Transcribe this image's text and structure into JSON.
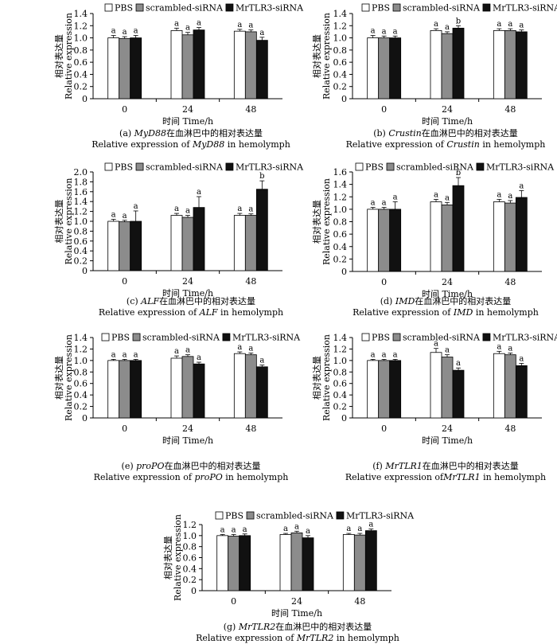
{
  "chart_data": [
    {
      "type": "bar",
      "panel": "a",
      "categories": [
        "0",
        "24",
        "48"
      ],
      "series": [
        {
          "name": "PBS",
          "color": "#ffffff",
          "values": [
            1.0,
            1.12,
            1.11
          ],
          "errors": [
            0.04,
            0.04,
            0.03
          ],
          "letters": [
            "a",
            "a",
            "a"
          ]
        },
        {
          "name": "scrambled-siRNA",
          "color": "#8c8c8c",
          "values": [
            0.99,
            1.05,
            1.1
          ],
          "errors": [
            0.03,
            0.04,
            0.03
          ],
          "letters": [
            "a",
            "a",
            "a"
          ]
        },
        {
          "name": "MrTLR3-siRNA",
          "color": "#111111",
          "values": [
            1.0,
            1.13,
            0.96
          ],
          "errors": [
            0.04,
            0.04,
            0.05
          ],
          "letters": [
            "a",
            "a",
            "a"
          ]
        }
      ],
      "ylim": [
        0,
        1.4
      ],
      "yticks": [
        0,
        0.2,
        0.4,
        0.6,
        0.8,
        1.0,
        1.2,
        1.4
      ],
      "ylabel_cn": "相对表达量",
      "ylabel_en": "Relative expression",
      "xlabel": "时间 Time/h",
      "caption_cn_prefix": "(a) ",
      "caption_gene": "MyD88",
      "caption_cn_suffix": "在血淋巴中的相对表达量",
      "caption_en_prefix": "Relative expression of ",
      "caption_en_suffix": " in hemolymph"
    },
    {
      "type": "bar",
      "panel": "b",
      "categories": [
        "0",
        "24",
        "48"
      ],
      "series": [
        {
          "name": "PBS",
          "color": "#ffffff",
          "values": [
            1.0,
            1.12,
            1.12
          ],
          "errors": [
            0.04,
            0.03,
            0.03
          ],
          "letters": [
            "a",
            "a",
            "a"
          ]
        },
        {
          "name": "scrambled-siRNA",
          "color": "#8c8c8c",
          "values": [
            1.0,
            1.07,
            1.12
          ],
          "errors": [
            0.03,
            0.03,
            0.03
          ],
          "letters": [
            "a",
            "a",
            "a"
          ]
        },
        {
          "name": "MrTLR3-siRNA",
          "color": "#111111",
          "values": [
            1.0,
            1.16,
            1.1
          ],
          "errors": [
            0.03,
            0.04,
            0.03
          ],
          "letters": [
            "a",
            "b",
            "a"
          ]
        }
      ],
      "ylim": [
        0,
        1.4
      ],
      "yticks": [
        0,
        0.2,
        0.4,
        0.6,
        0.8,
        1.0,
        1.2,
        1.4
      ],
      "ylabel_cn": "相对表达量",
      "ylabel_en": "Relative expression",
      "xlabel": "时间 Time/h",
      "caption_cn_prefix": "(b) ",
      "caption_gene": "Crustin",
      "caption_cn_suffix": "在血淋巴中的相对表达量",
      "caption_en_prefix": "Relative expression of ",
      "caption_en_suffix": " in hemolymph"
    },
    {
      "type": "bar",
      "panel": "c",
      "categories": [
        "0",
        "24",
        "48"
      ],
      "series": [
        {
          "name": "PBS",
          "color": "#ffffff",
          "values": [
            1.0,
            1.12,
            1.12
          ],
          "errors": [
            0.04,
            0.04,
            0.04
          ],
          "letters": [
            "a",
            "a",
            "a"
          ]
        },
        {
          "name": "scrambled-siRNA",
          "color": "#8c8c8c",
          "values": [
            0.99,
            1.08,
            1.12
          ],
          "errors": [
            0.03,
            0.04,
            0.03
          ],
          "letters": [
            "a",
            "a",
            "a"
          ]
        },
        {
          "name": "MrTLR3-siRNA",
          "color": "#111111",
          "values": [
            1.0,
            1.28,
            1.65
          ],
          "errors": [
            0.21,
            0.22,
            0.17
          ],
          "letters": [
            "a",
            "a",
            "b"
          ]
        }
      ],
      "ylim": [
        0,
        2.0
      ],
      "yticks": [
        0,
        0.2,
        0.4,
        0.6,
        0.8,
        1.0,
        1.2,
        1.4,
        1.6,
        1.8,
        2.0
      ],
      "ylabel_cn": "相对表达量",
      "ylabel_en": "Relative expression",
      "xlabel": "时间 Time/h",
      "caption_cn_prefix": "(c) ",
      "caption_gene": "ALF",
      "caption_cn_suffix": "在血淋巴中的相对表达量",
      "caption_en_prefix": "Relative expression of ",
      "caption_en_suffix": " in hemolymph"
    },
    {
      "type": "bar",
      "panel": "d",
      "categories": [
        "0",
        "24",
        "48"
      ],
      "series": [
        {
          "name": "PBS",
          "color": "#ffffff",
          "values": [
            1.0,
            1.12,
            1.12
          ],
          "errors": [
            0.03,
            0.04,
            0.04
          ],
          "letters": [
            "a",
            "a",
            "a"
          ]
        },
        {
          "name": "scrambled-siRNA",
          "color": "#8c8c8c",
          "values": [
            1.0,
            1.07,
            1.1
          ],
          "errors": [
            0.03,
            0.04,
            0.04
          ],
          "letters": [
            "a",
            "a",
            "a"
          ]
        },
        {
          "name": "MrTLR3-siRNA",
          "color": "#111111",
          "values": [
            1.0,
            1.38,
            1.19
          ],
          "errors": [
            0.12,
            0.13,
            0.11
          ],
          "letters": [
            "a",
            "b",
            "a"
          ]
        }
      ],
      "ylim": [
        0,
        1.6
      ],
      "yticks": [
        0,
        0.2,
        0.4,
        0.6,
        0.8,
        1.0,
        1.2,
        1.4,
        1.6
      ],
      "ylabel_cn": "相对表达量",
      "ylabel_en": "Relative expression",
      "xlabel": "时间 Time/h",
      "caption_cn_prefix": "(d) ",
      "caption_gene": "IMD",
      "caption_cn_suffix": "在血淋巴中的相对表达量",
      "caption_en_prefix": "Relative expression of ",
      "caption_en_suffix": " in hemolymph"
    },
    {
      "type": "bar",
      "panel": "e",
      "categories": [
        "0",
        "24",
        "48"
      ],
      "series": [
        {
          "name": "PBS",
          "color": "#ffffff",
          "values": [
            1.0,
            1.04,
            1.12
          ],
          "errors": [
            0.02,
            0.04,
            0.03
          ],
          "letters": [
            "a",
            "a",
            "a"
          ]
        },
        {
          "name": "scrambled-siRNA",
          "color": "#8c8c8c",
          "values": [
            1.0,
            1.07,
            1.1
          ],
          "errors": [
            0.02,
            0.03,
            0.03
          ],
          "letters": [
            "a",
            "a",
            "a"
          ]
        },
        {
          "name": "MrTLR3-siRNA",
          "color": "#111111",
          "values": [
            1.0,
            0.94,
            0.89
          ],
          "errors": [
            0.02,
            0.03,
            0.03
          ],
          "letters": [
            "a",
            "a",
            "a"
          ]
        }
      ],
      "ylim": [
        0,
        1.4
      ],
      "yticks": [
        0,
        0.2,
        0.4,
        0.6,
        0.8,
        1.0,
        1.2,
        1.4
      ],
      "ylabel_cn": "相对表达量",
      "ylabel_en": "Relative expression",
      "xlabel": "时间 Time/h",
      "caption_cn_prefix": "(e) ",
      "caption_gene": "proPO",
      "caption_cn_suffix": "在血淋巴中的相对表达量",
      "caption_en_prefix": "Relative expression of ",
      "caption_en_suffix": " in hemolymph"
    },
    {
      "type": "bar",
      "panel": "f",
      "categories": [
        "0",
        "24",
        "48"
      ],
      "series": [
        {
          "name": "PBS",
          "color": "#ffffff",
          "values": [
            1.0,
            1.14,
            1.12
          ],
          "errors": [
            0.02,
            0.07,
            0.04
          ],
          "letters": [
            "a",
            "a",
            "a"
          ]
        },
        {
          "name": "scrambled-siRNA",
          "color": "#8c8c8c",
          "values": [
            1.0,
            1.06,
            1.1
          ],
          "errors": [
            0.02,
            0.04,
            0.03
          ],
          "letters": [
            "a",
            "a",
            "a"
          ]
        },
        {
          "name": "MrTLR3-siRNA",
          "color": "#111111",
          "values": [
            1.0,
            0.83,
            0.91
          ],
          "errors": [
            0.02,
            0.04,
            0.04
          ],
          "letters": [
            "a",
            "a",
            "a"
          ]
        }
      ],
      "ylim": [
        0,
        1.4
      ],
      "yticks": [
        0,
        0.2,
        0.4,
        0.6,
        0.8,
        1.0,
        1.2,
        1.4
      ],
      "ylabel_cn": "相对表达量",
      "ylabel_en": "Relative expression",
      "xlabel": "时间 Time/h",
      "caption_cn_prefix": "(f) ",
      "caption_gene": "MrTLR1",
      "caption_cn_suffix": "在血淋巴中的相对表达量",
      "caption_en_prefix": "Relative expression of",
      "caption_en_suffix": " in hemolymph"
    },
    {
      "type": "bar",
      "panel": "g",
      "categories": [
        "0",
        "24",
        "48"
      ],
      "series": [
        {
          "name": "PBS",
          "color": "#ffffff",
          "values": [
            1.0,
            1.02,
            1.02
          ],
          "errors": [
            0.02,
            0.02,
            0.02
          ],
          "letters": [
            "a",
            "a",
            "a"
          ]
        },
        {
          "name": "scrambled-siRNA",
          "color": "#8c8c8c",
          "values": [
            0.99,
            1.05,
            1.01
          ],
          "errors": [
            0.03,
            0.03,
            0.03
          ],
          "letters": [
            "a",
            "a",
            "a"
          ]
        },
        {
          "name": "MrTLR3-siRNA",
          "color": "#111111",
          "values": [
            1.0,
            0.96,
            1.09
          ],
          "errors": [
            0.03,
            0.04,
            0.03
          ],
          "letters": [
            "a",
            "a",
            "a"
          ]
        }
      ],
      "ylim": [
        0,
        1.2
      ],
      "yticks": [
        0,
        0.2,
        0.4,
        0.6,
        0.8,
        1.0,
        1.2
      ],
      "ylabel_cn": "相对表达量",
      "ylabel_en": "Relative expression",
      "xlabel": "时间 Time/h",
      "caption_cn_prefix": "(g) ",
      "caption_gene": "MrTLR2",
      "caption_cn_suffix": "在血淋巴中的相对表达量",
      "caption_en_prefix": "Relative expression of ",
      "caption_en_suffix": " in hemolymph"
    }
  ]
}
